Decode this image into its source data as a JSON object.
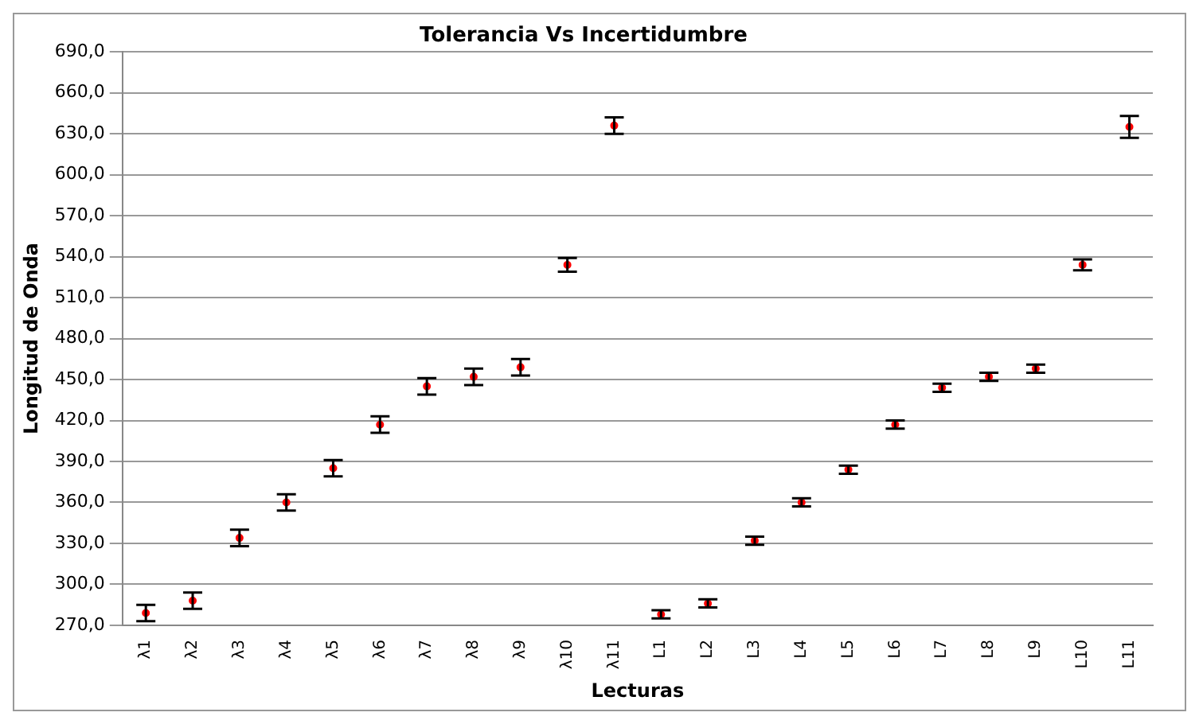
{
  "chart_data": {
    "type": "scatter",
    "title": "Tolerancia Vs Incertidumbre",
    "xlabel": "Lecturas",
    "ylabel": "Longitud de Onda",
    "categories": [
      "λ1",
      "λ2",
      "λ3",
      "λ4",
      "λ5",
      "λ6",
      "λ7",
      "λ8",
      "λ9",
      "λ10",
      "λ11",
      "L1",
      "L2",
      "L3",
      "L4",
      "L5",
      "L6",
      "L7",
      "L8",
      "L9",
      "L10",
      "L11"
    ],
    "series": [
      {
        "color": "#ff0000",
        "values": [
          279,
          288,
          334,
          360,
          385,
          417,
          445,
          452,
          459,
          534,
          636,
          278,
          286,
          332,
          360,
          384,
          417,
          444,
          452,
          458,
          534,
          635
        ],
        "errors": [
          6,
          6,
          6,
          6,
          6,
          6,
          6,
          6,
          6,
          5,
          6,
          3,
          3,
          3,
          3,
          3,
          3,
          3,
          3,
          3,
          4,
          8
        ]
      }
    ],
    "ylim": [
      270,
      690
    ],
    "yticks": [
      {
        "value": 270,
        "label": "270,0"
      },
      {
        "value": 300,
        "label": "300,0"
      },
      {
        "value": 330,
        "label": "330,0"
      },
      {
        "value": 360,
        "label": "360,0"
      },
      {
        "value": 390,
        "label": "390,0"
      },
      {
        "value": 420,
        "label": "420,0"
      },
      {
        "value": 450,
        "label": "450,0"
      },
      {
        "value": 480,
        "label": "480,0"
      },
      {
        "value": 510,
        "label": "510,0"
      },
      {
        "value": 540,
        "label": "540,0"
      },
      {
        "value": 570,
        "label": "570,0"
      },
      {
        "value": 600,
        "label": "600,0"
      },
      {
        "value": 630,
        "label": "630,0"
      },
      {
        "value": 660,
        "label": "660,0"
      },
      {
        "value": 690,
        "label": "690,0"
      }
    ],
    "grid": "y",
    "legend": false,
    "marker": "circle"
  }
}
